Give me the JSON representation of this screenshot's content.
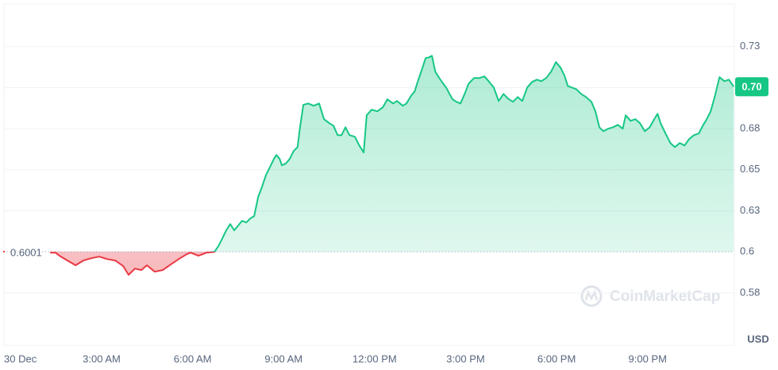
{
  "chart_data": {
    "type": "line",
    "x": [
      1.3,
      1.48,
      1.61,
      1.87,
      2.14,
      2.4,
      2.66,
      2.92,
      3.18,
      3.45,
      3.71,
      3.89,
      4.1,
      4.31,
      4.49,
      4.75,
      5.02,
      5.28,
      5.54,
      5.8,
      5.93,
      6.19,
      6.46,
      6.72,
      6.85,
      6.98,
      7.11,
      7.24,
      7.37,
      7.5,
      7.63,
      7.77,
      7.9,
      8.03,
      8.16,
      8.29,
      8.42,
      8.55,
      8.68,
      8.76,
      8.87,
      8.94,
      9.07,
      9.2,
      9.33,
      9.46,
      9.54,
      9.65,
      9.81,
      9.99,
      10.17,
      10.33,
      10.51,
      10.64,
      10.78,
      10.91,
      11.04,
      11.17,
      11.35,
      11.48,
      11.64,
      11.74,
      11.9,
      12.09,
      12.27,
      12.42,
      12.61,
      12.74,
      12.93,
      13.05,
      13.21,
      13.32,
      13.42,
      13.58,
      13.68,
      13.79,
      13.89,
      14.0,
      14.13,
      14.26,
      14.36,
      14.47,
      14.57,
      14.7,
      14.83,
      14.97,
      15.1,
      15.28,
      15.46,
      15.62,
      15.78,
      15.93,
      16.09,
      16.25,
      16.4,
      16.56,
      16.72,
      16.87,
      17.03,
      17.19,
      17.35,
      17.5,
      17.66,
      17.82,
      17.98,
      18.13,
      18.26,
      18.37,
      18.5,
      18.65,
      18.81,
      18.97,
      19.15,
      19.28,
      19.41,
      19.54,
      19.7,
      19.86,
      20.02,
      20.18,
      20.28,
      20.44,
      20.6,
      20.75,
      20.91,
      21.07,
      21.22,
      21.33,
      21.43,
      21.59,
      21.75,
      21.9,
      22.06,
      22.22,
      22.37,
      22.53,
      22.69,
      22.82,
      22.95,
      23.08,
      23.21,
      23.37,
      23.53,
      23.68,
      23.84
    ],
    "values": [
      0.5995,
      0.5995,
      0.5976,
      0.5947,
      0.5918,
      0.5947,
      0.5961,
      0.5971,
      0.5956,
      0.5947,
      0.5913,
      0.586,
      0.5898,
      0.5889,
      0.5918,
      0.5879,
      0.5889,
      0.5923,
      0.5956,
      0.5985,
      0.5995,
      0.5976,
      0.5995,
      0.6,
      0.6034,
      0.6082,
      0.6131,
      0.6169,
      0.6131,
      0.616,
      0.6189,
      0.6179,
      0.6203,
      0.6218,
      0.6334,
      0.6397,
      0.6469,
      0.6517,
      0.6566,
      0.659,
      0.6566,
      0.6527,
      0.6537,
      0.6566,
      0.6614,
      0.6638,
      0.6759,
      0.6895,
      0.6904,
      0.689,
      0.6904,
      0.6808,
      0.6783,
      0.6769,
      0.6711,
      0.6711,
      0.6759,
      0.6711,
      0.6701,
      0.6653,
      0.6605,
      0.6832,
      0.6866,
      0.6856,
      0.688,
      0.6929,
      0.6904,
      0.6919,
      0.689,
      0.6904,
      0.6953,
      0.6977,
      0.7035,
      0.7122,
      0.718,
      0.7185,
      0.7194,
      0.7098,
      0.7059,
      0.7025,
      0.7001,
      0.6962,
      0.6929,
      0.6914,
      0.6904,
      0.6962,
      0.7025,
      0.7059,
      0.7059,
      0.7069,
      0.7035,
      0.7001,
      0.6919,
      0.6962,
      0.6933,
      0.6914,
      0.6943,
      0.6919,
      0.7001,
      0.7035,
      0.7049,
      0.704,
      0.7059,
      0.7098,
      0.7156,
      0.7122,
      0.7074,
      0.7011,
      0.7001,
      0.6991,
      0.6962,
      0.6943,
      0.6914,
      0.6856,
      0.6759,
      0.6735,
      0.675,
      0.6759,
      0.6774,
      0.675,
      0.6832,
      0.6798,
      0.6808,
      0.6783,
      0.6735,
      0.6759,
      0.6808,
      0.6841,
      0.6783,
      0.6721,
      0.6663,
      0.6638,
      0.6663,
      0.6648,
      0.6687,
      0.6711,
      0.6721,
      0.6769,
      0.6808,
      0.6856,
      0.6943,
      0.7064,
      0.704,
      0.7049,
      0.7006
    ],
    "baseline": 0.6001,
    "color_up": "#16c784",
    "color_down": "#ea3943",
    "price_label": "0.70",
    "currency": "USD",
    "watermark": "CoinMarketCap",
    "xlim": [
      -0.22,
      23.86
    ],
    "xticks": [
      {
        "value": 0,
        "label": "30 Dec"
      },
      {
        "value": 3,
        "label": "3:00 AM"
      },
      {
        "value": 6,
        "label": "6:00 AM"
      },
      {
        "value": 9,
        "label": "9:00 AM"
      },
      {
        "value": 12,
        "label": "12:00 PM"
      },
      {
        "value": 15,
        "label": "3:00 PM"
      },
      {
        "value": 18,
        "label": "6:00 PM"
      },
      {
        "value": 21,
        "label": "9:00 PM"
      }
    ],
    "ylim": [
      0.543,
      0.751
    ],
    "yticks": [
      {
        "value": 0.575,
        "label": "0.58"
      },
      0.6,
      {
        "value": 0.625,
        "label": "0.63"
      },
      0.65,
      {
        "value": 0.675,
        "label": "0.68"
      },
      0.7,
      {
        "value": 0.725,
        "label": "0.73"
      }
    ],
    "grid": true
  }
}
